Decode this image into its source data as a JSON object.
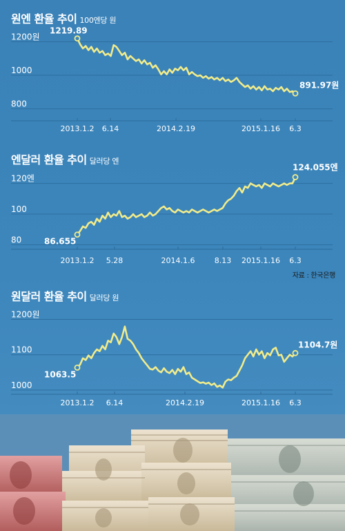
{
  "charts": [
    {
      "title": "원엔 환율 추이",
      "unit": "100엔당 원"
    },
    {
      "title": "엔달러 환율 추이",
      "unit": "달러당 엔"
    },
    {
      "title": "원달러 환율 추이",
      "unit": "달러당 원"
    }
  ],
  "source": "자료 : 한국은행",
  "colors": {
    "background": "#3c86bc",
    "line": "#f2ec8a",
    "text": "#ffffff"
  },
  "chart_data": [
    {
      "type": "line",
      "title": "원엔 환율 추이",
      "unit": "100엔당 원",
      "ylim": [
        790,
        1235
      ],
      "y_ticks": [
        {
          "value": 1200,
          "label": "1200원"
        },
        {
          "value": 1000,
          "label": "1000"
        },
        {
          "value": 800,
          "label": "800"
        }
      ],
      "x_ticks": [
        "2013.1.2",
        "6.14",
        "2014.2.19",
        "2015.1.16",
        "6.3"
      ],
      "start_label": "1219.89",
      "end_label": "891.97원",
      "series": [
        {
          "values": [
            1219.89,
            1185,
            1160,
            1175,
            1150,
            1170,
            1140,
            1160,
            1135,
            1145,
            1120,
            1130,
            1115,
            1180,
            1170,
            1145,
            1120,
            1135,
            1095,
            1115,
            1100,
            1085,
            1095,
            1070,
            1090,
            1065,
            1075,
            1045,
            1060,
            1035,
            1005,
            1025,
            1005,
            1035,
            1015,
            1040,
            1030,
            1050,
            1030,
            1045,
            1005,
            1020,
            1005,
            995,
            1000,
            985,
            995,
            980,
            990,
            975,
            985,
            970,
            985,
            965,
            975,
            960,
            970,
            985,
            960,
            945,
            930,
            940,
            920,
            935,
            915,
            930,
            910,
            935,
            915,
            920,
            905,
            925,
            915,
            930,
            905,
            920,
            900,
            905,
            891.97
          ]
        }
      ]
    },
    {
      "type": "line",
      "title": "엔달러 환율 추이",
      "unit": "달러당 엔",
      "ylim": [
        78,
        127
      ],
      "y_ticks": [
        {
          "value": 120,
          "label": "120엔"
        },
        {
          "value": 100,
          "label": "100"
        },
        {
          "value": 80,
          "label": "80"
        }
      ],
      "x_ticks": [
        "2013.1.2",
        "5.28",
        "2014.1.6",
        "8.13",
        "2015.1.16",
        "6.3"
      ],
      "start_label": "86.655",
      "end_label": "124.055엔",
      "series": [
        {
          "values": [
            86.655,
            89,
            92,
            91,
            94,
            95,
            93,
            97,
            95,
            99,
            97,
            101,
            98,
            100,
            99,
            102,
            98,
            99,
            97,
            98,
            100,
            98,
            99,
            100,
            98,
            99,
            101,
            99,
            100,
            102,
            104,
            105,
            103,
            104,
            102,
            101,
            103,
            102,
            101,
            102,
            101,
            103,
            102,
            101,
            102,
            103,
            102,
            101,
            102,
            103,
            102,
            103,
            104,
            107,
            109,
            110,
            112,
            115,
            117,
            114,
            118,
            117,
            120,
            119,
            118,
            119,
            117,
            120,
            119,
            118,
            120,
            119,
            118,
            119,
            120,
            119,
            120,
            120,
            124.055
          ]
        }
      ]
    },
    {
      "type": "line",
      "title": "원달러 환율 추이",
      "unit": "달러당 원",
      "ylim": [
        990,
        1205
      ],
      "y_ticks": [
        {
          "value": 1200,
          "label": "1200원"
        },
        {
          "value": 1100,
          "label": "1100"
        },
        {
          "value": 1000,
          "label": "1000"
        }
      ],
      "x_ticks": [
        "2013.1.2",
        "6.14",
        "2014.2.19",
        "2015.1.16",
        "6.3"
      ],
      "start_label": "1063.5",
      "end_label": "1104.7원",
      "series": [
        {
          "values": [
            1063.5,
            1072,
            1090,
            1085,
            1098,
            1090,
            1105,
            1115,
            1110,
            1125,
            1115,
            1140,
            1135,
            1160,
            1150,
            1130,
            1150,
            1180,
            1145,
            1140,
            1130,
            1115,
            1105,
            1090,
            1080,
            1070,
            1060,
            1058,
            1065,
            1055,
            1050,
            1062,
            1052,
            1048,
            1057,
            1045,
            1060,
            1052,
            1065,
            1045,
            1050,
            1035,
            1030,
            1025,
            1020,
            1022,
            1018,
            1021,
            1014,
            1019,
            1009,
            1013,
            1007,
            1024,
            1030,
            1028,
            1035,
            1040,
            1055,
            1070,
            1090,
            1100,
            1110,
            1095,
            1115,
            1100,
            1110,
            1090,
            1105,
            1098,
            1115,
            1120,
            1098,
            1100,
            1080,
            1090,
            1100,
            1095,
            1104.7
          ]
        }
      ]
    }
  ]
}
